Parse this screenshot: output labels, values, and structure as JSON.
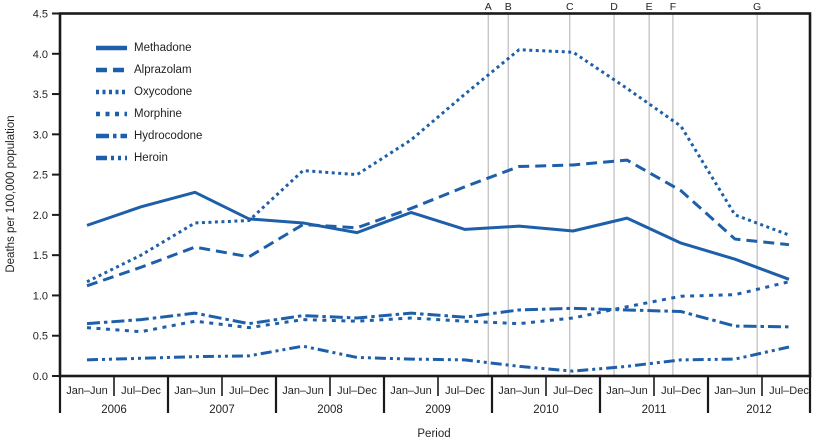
{
  "chart_data": {
    "type": "line",
    "title": "",
    "xlabel": "Period",
    "ylabel": "Deaths per 100,000 population",
    "ylim": [
      0,
      4.5
    ],
    "ytick_labels": [
      "0.0",
      "0.5",
      "1.0",
      "1.5",
      "2.0",
      "2.5",
      "3.0",
      "3.5",
      "4.0",
      "4.5"
    ],
    "grid": "vertical-reference-lines-only",
    "legend_position": "upper-left-inside",
    "line_color": "#1e5fa9",
    "period_labels": [
      "Jan–Jun",
      "Jul–Dec",
      "Jan–Jun",
      "Jul–Dec",
      "Jan–Jun",
      "Jul–Dec",
      "Jan–Jun",
      "Jul–Dec",
      "Jan–Jun",
      "Jul–Dec",
      "Jan–Jun",
      "Jul–Dec",
      "Jan–Jun",
      "Jul–Dec"
    ],
    "year_labels": [
      "2006",
      "2007",
      "2008",
      "2009",
      "2010",
      "2011",
      "2012"
    ],
    "series": [
      {
        "name": "Methadone",
        "line_style": "solid",
        "values": [
          1.87,
          2.1,
          2.28,
          1.95,
          1.9,
          1.78,
          2.03,
          1.82,
          1.86,
          1.8,
          1.96,
          1.65,
          1.45,
          1.2
        ]
      },
      {
        "name": "Alprazolam",
        "line_style": "dash",
        "values": [
          1.12,
          1.35,
          1.6,
          1.48,
          1.88,
          1.84,
          2.08,
          2.35,
          2.6,
          2.62,
          2.68,
          2.3,
          1.7,
          1.63
        ]
      },
      {
        "name": "Oxycodone",
        "line_style": "dot",
        "values": [
          1.17,
          1.5,
          1.9,
          1.93,
          2.55,
          2.5,
          2.93,
          3.5,
          4.05,
          4.02,
          3.57,
          3.1,
          2.0,
          1.75
        ]
      },
      {
        "name": "Morphine",
        "line_style": "short-dash",
        "values": [
          0.6,
          0.55,
          0.68,
          0.6,
          0.7,
          0.68,
          0.72,
          0.68,
          0.65,
          0.72,
          0.86,
          0.99,
          1.01,
          1.17
        ]
      },
      {
        "name": "Hydrocodone",
        "line_style": "dash-dot",
        "values": [
          0.65,
          0.7,
          0.78,
          0.65,
          0.75,
          0.72,
          0.78,
          0.73,
          0.82,
          0.84,
          0.82,
          0.8,
          0.62,
          0.61
        ]
      },
      {
        "name": "Heroin",
        "line_style": "dash-dot-dot",
        "values": [
          0.2,
          0.22,
          0.24,
          0.25,
          0.37,
          0.23,
          0.21,
          0.2,
          0.12,
          0.06,
          0.12,
          0.2,
          0.21,
          0.36
        ]
      }
    ],
    "reference_lines": [
      {
        "label": "A",
        "x_index": 7.43
      },
      {
        "label": "B",
        "x_index": 7.8
      },
      {
        "label": "C",
        "x_index": 8.94
      },
      {
        "label": "D",
        "x_index": 9.76
      },
      {
        "label": "E",
        "x_index": 10.41
      },
      {
        "label": "F",
        "x_index": 10.85
      },
      {
        "label": "G",
        "x_index": 12.41
      }
    ]
  }
}
